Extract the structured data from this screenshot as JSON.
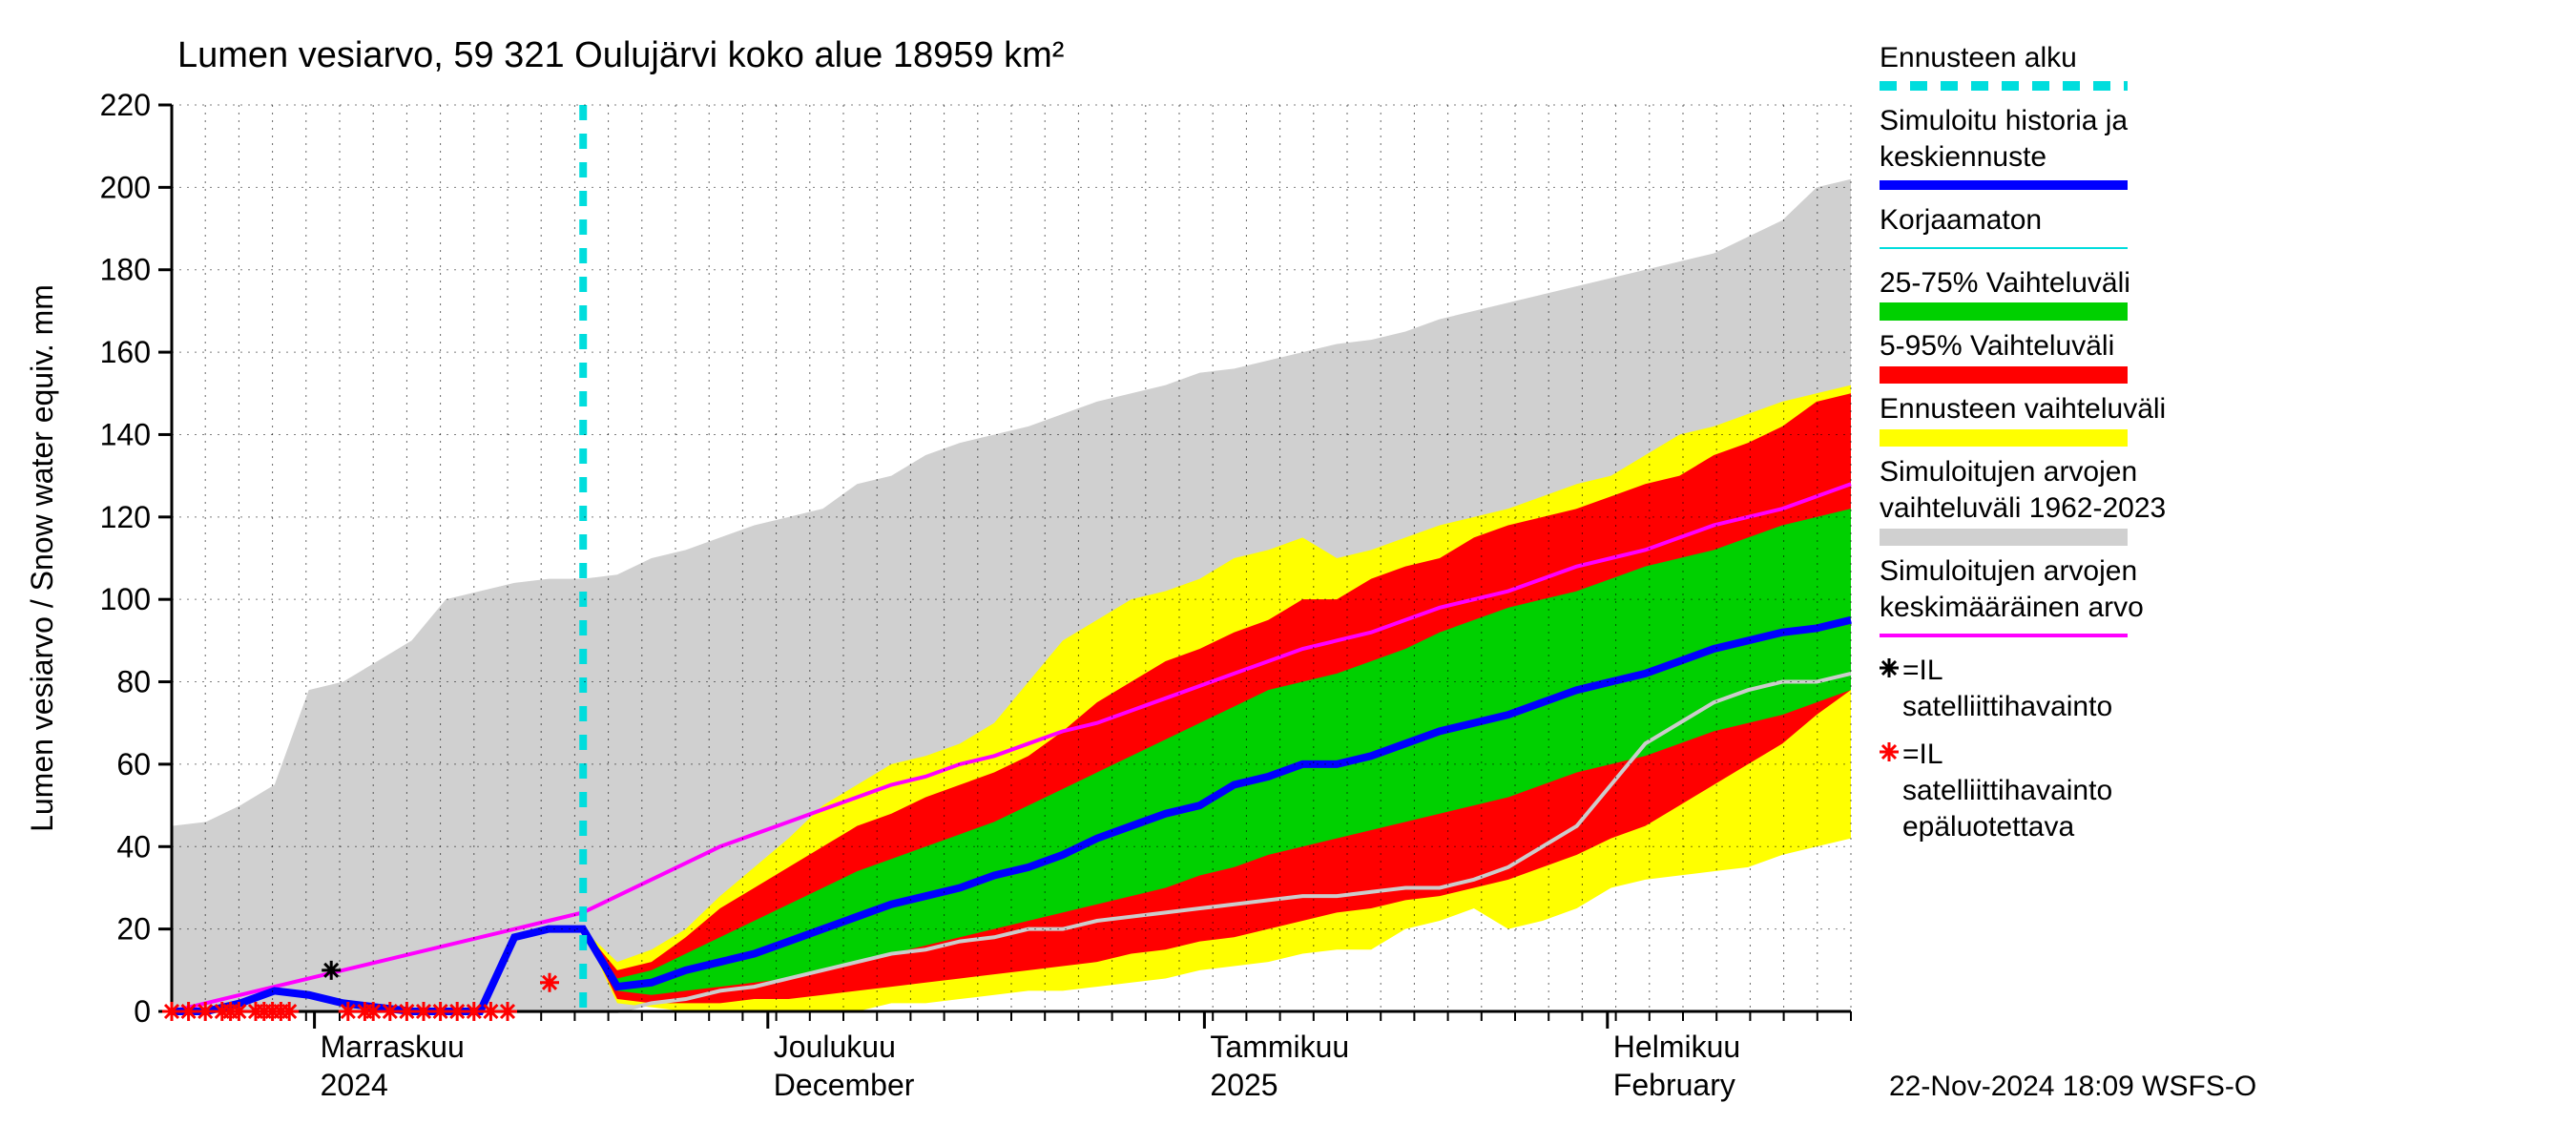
{
  "title": "Lumen vesiarvo, 59 321 Oulujärvi koko alue 18959 km²",
  "ylabel": "Lumen vesiarvo / Snow water equiv.    mm",
  "footer": "22-Nov-2024 18:09 WSFS-O",
  "ylim": [
    0,
    220
  ],
  "ytick_step": 20,
  "xaxis": {
    "labels": [
      {
        "fi": "Marraskuu",
        "en": "2024",
        "pos": 0.085
      },
      {
        "fi": "Joulukuu",
        "en": "December",
        "pos": 0.355
      },
      {
        "fi": "Tammikuu",
        "en": "2025",
        "pos": 0.615
      },
      {
        "fi": "Helmikuu",
        "en": "February",
        "pos": 0.855
      }
    ]
  },
  "colors": {
    "bg": "#ffffff",
    "gray_band": "#d0d0d0",
    "yellow": "#ffff00",
    "red": "#ff0000",
    "green": "#00d000",
    "blue": "#0000ff",
    "magenta": "#ff00ff",
    "cyan": "#00dddd",
    "light_gray_line": "#cccccc",
    "black": "#000000",
    "red_marker": "#ff0000",
    "grid": "#000000"
  },
  "legend": [
    {
      "label": "Ennusteen alku",
      "swatch": "cyan_dash"
    },
    {
      "label": "Simuloitu historia ja keskiennuste",
      "swatch": "blue_thick"
    },
    {
      "label": "Korjaamaton",
      "swatch": "cyan_thin"
    },
    {
      "label": "25-75% Vaihteluväli",
      "swatch": "green_fill"
    },
    {
      "label": "5-95% Vaihteluväli",
      "swatch": "red_fill"
    },
    {
      "label": "Ennusteen vaihteluväli",
      "swatch": "yellow_fill"
    },
    {
      "label": "Simuloitujen arvojen vaihteluväli 1962-2023",
      "swatch": "gray_fill"
    },
    {
      "label": "Simuloitujen arvojen keskimääräinen arvo",
      "swatch": "magenta_line"
    },
    {
      "label": "=IL satelliittihavainto",
      "swatch": "black_star"
    },
    {
      "label": "=IL satelliittihavainto epäluotettava",
      "swatch": "red_star"
    }
  ],
  "forecast_start_x": 0.245,
  "series": {
    "gray_upper": [
      45,
      46,
      50,
      55,
      78,
      80,
      85,
      90,
      100,
      102,
      104,
      105,
      105,
      106,
      110,
      112,
      115,
      118,
      120,
      122,
      128,
      130,
      135,
      138,
      140,
      142,
      145,
      148,
      150,
      152,
      155,
      156,
      158,
      160,
      162,
      163,
      165,
      168,
      170,
      172,
      174,
      176,
      178,
      180,
      182,
      184,
      188,
      192,
      200,
      202
    ],
    "gray_lower": [
      0,
      0,
      0,
      0,
      0,
      0,
      0,
      0,
      0,
      0,
      0,
      0,
      0,
      0,
      2,
      3,
      5,
      6,
      8,
      10,
      12,
      14,
      15,
      17,
      18,
      20,
      20,
      22,
      23,
      24,
      25,
      26,
      27,
      28,
      28,
      29,
      30,
      30,
      32,
      35,
      40,
      45,
      55,
      65,
      70,
      75,
      78,
      80,
      80,
      82
    ],
    "yellow_upper": [
      0,
      0,
      0,
      0,
      0,
      0,
      0,
      0,
      0,
      0,
      18,
      20,
      20,
      12,
      15,
      20,
      28,
      35,
      42,
      50,
      55,
      60,
      62,
      65,
      70,
      80,
      90,
      95,
      100,
      102,
      105,
      110,
      112,
      115,
      110,
      112,
      115,
      118,
      120,
      122,
      125,
      128,
      130,
      135,
      140,
      142,
      145,
      148,
      150,
      152
    ],
    "yellow_lower": [
      0,
      0,
      0,
      0,
      0,
      0,
      0,
      0,
      0,
      0,
      18,
      20,
      20,
      2,
      1,
      0,
      0,
      0,
      0,
      0,
      0,
      2,
      2,
      3,
      4,
      5,
      5,
      6,
      7,
      8,
      10,
      11,
      12,
      14,
      15,
      15,
      20,
      22,
      25,
      20,
      22,
      25,
      30,
      32,
      33,
      34,
      35,
      38,
      40,
      42
    ],
    "red_upper": [
      0,
      0,
      0,
      0,
      0,
      0,
      0,
      0,
      0,
      0,
      18,
      20,
      20,
      10,
      12,
      18,
      25,
      30,
      35,
      40,
      45,
      48,
      52,
      55,
      58,
      62,
      68,
      75,
      80,
      85,
      88,
      92,
      95,
      100,
      100,
      105,
      108,
      110,
      115,
      118,
      120,
      122,
      125,
      128,
      130,
      135,
      138,
      142,
      148,
      150
    ],
    "red_lower": [
      0,
      0,
      0,
      0,
      0,
      0,
      0,
      0,
      0,
      0,
      18,
      20,
      20,
      3,
      2,
      2,
      2,
      3,
      3,
      4,
      5,
      6,
      7,
      8,
      9,
      10,
      11,
      12,
      14,
      15,
      17,
      18,
      20,
      22,
      24,
      25,
      27,
      28,
      30,
      32,
      35,
      38,
      42,
      45,
      50,
      55,
      60,
      65,
      72,
      78
    ],
    "green_upper": [
      0,
      0,
      0,
      0,
      0,
      0,
      0,
      0,
      0,
      0,
      18,
      20,
      20,
      8,
      10,
      14,
      18,
      22,
      26,
      30,
      34,
      37,
      40,
      43,
      46,
      50,
      54,
      58,
      62,
      66,
      70,
      74,
      78,
      80,
      82,
      85,
      88,
      92,
      95,
      98,
      100,
      102,
      105,
      108,
      110,
      112,
      115,
      118,
      120,
      122
    ],
    "green_lower": [
      0,
      0,
      0,
      0,
      0,
      0,
      0,
      0,
      0,
      0,
      18,
      20,
      20,
      5,
      4,
      5,
      6,
      7,
      8,
      10,
      12,
      14,
      16,
      18,
      20,
      22,
      24,
      26,
      28,
      30,
      33,
      35,
      38,
      40,
      42,
      44,
      46,
      48,
      50,
      52,
      55,
      58,
      60,
      62,
      65,
      68,
      70,
      72,
      75,
      78
    ],
    "blue": [
      0,
      0,
      2,
      5,
      4,
      2,
      1,
      0,
      0,
      0,
      18,
      20,
      20,
      6,
      7,
      10,
      12,
      14,
      17,
      20,
      23,
      26,
      28,
      30,
      33,
      35,
      38,
      42,
      45,
      48,
      50,
      55,
      57,
      60,
      60,
      62,
      65,
      68,
      70,
      72,
      75,
      78,
      80,
      82,
      85,
      88,
      90,
      92,
      93,
      95
    ],
    "magenta": [
      0,
      2,
      4,
      6,
      8,
      10,
      12,
      14,
      16,
      18,
      20,
      22,
      24,
      28,
      32,
      36,
      40,
      43,
      46,
      49,
      52,
      55,
      57,
      60,
      62,
      65,
      68,
      70,
      73,
      76,
      79,
      82,
      85,
      88,
      90,
      92,
      95,
      98,
      100,
      102,
      105,
      108,
      110,
      112,
      115,
      118,
      120,
      122,
      125,
      128
    ],
    "gray_line": [
      0,
      0,
      0,
      0,
      0,
      0,
      0,
      0,
      0,
      0,
      0,
      0,
      0,
      0,
      2,
      3,
      5,
      6,
      8,
      10,
      12,
      14,
      15,
      17,
      18,
      20,
      20,
      22,
      23,
      24,
      25,
      26,
      27,
      28,
      28,
      29,
      30,
      30,
      32,
      35,
      40,
      45,
      55,
      65,
      70,
      75,
      78,
      80,
      80,
      82
    ]
  },
  "red_markers_x": [
    0.0,
    0.01,
    0.02,
    0.03,
    0.035,
    0.04,
    0.05,
    0.055,
    0.06,
    0.065,
    0.07,
    0.105,
    0.115,
    0.12,
    0.13,
    0.14,
    0.15,
    0.16,
    0.17,
    0.18,
    0.19,
    0.2,
    0.225
  ],
  "red_markers_y": [
    0,
    0,
    0,
    0,
    0,
    0,
    0,
    0,
    0,
    0,
    0,
    0,
    0,
    0,
    0,
    0,
    0,
    0,
    0,
    0,
    0,
    0,
    7
  ],
  "black_markers": [
    {
      "x": 0.095,
      "y": 10
    }
  ]
}
